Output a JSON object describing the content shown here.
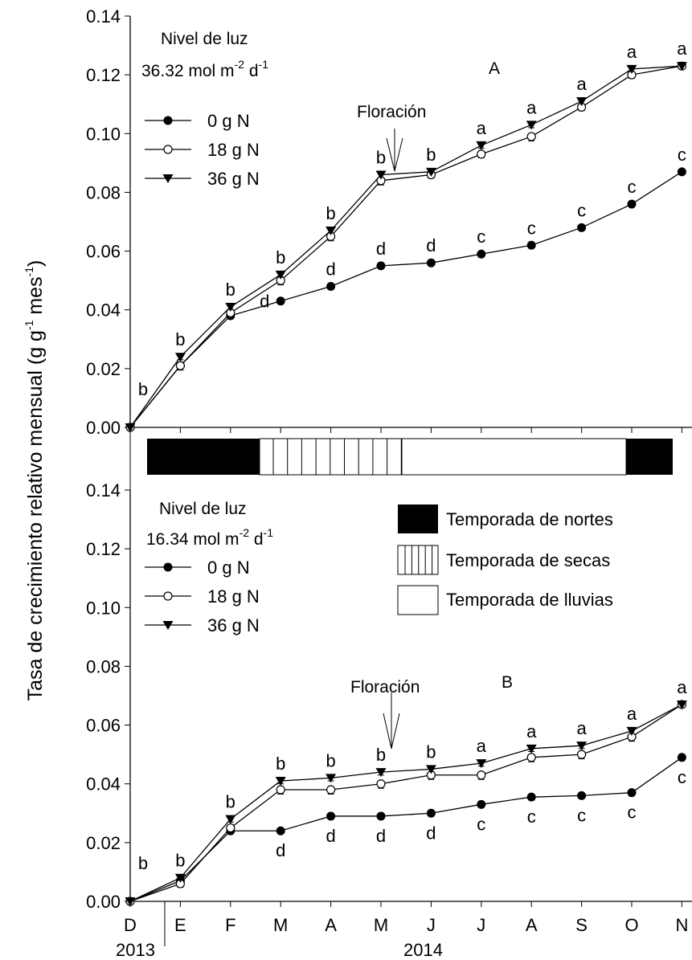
{
  "ylabel": {
    "main": "Tasa de crecimiento relativo mensual (g g",
    "sup1": "-1",
    "mid": " mes",
    "sup2": "-1",
    "end": ")"
  },
  "season_legend": {
    "items": [
      {
        "label": "Temporada de nortes",
        "pattern": "solid"
      },
      {
        "label": "Temporada de secas",
        "pattern": "vertical-lines"
      },
      {
        "label": "Temporada de lluvias",
        "pattern": "blank"
      }
    ]
  },
  "season_bar": [
    {
      "pattern": "solid",
      "from": "D",
      "to": "F"
    },
    {
      "pattern": "vertical-lines",
      "from": "F",
      "to": "J"
    },
    {
      "pattern": "blank",
      "from": "J",
      "to": "N"
    },
    {
      "pattern": "solid",
      "from": "N",
      "to": "end"
    }
  ],
  "x_axis": {
    "categories": [
      "D",
      "E",
      "F",
      "M",
      "A",
      "M",
      "J",
      "J",
      "A",
      "S",
      "O",
      "N"
    ],
    "years": [
      "2013",
      "2014"
    ]
  },
  "chart_data": [
    {
      "type": "line",
      "panel_letter": "A",
      "light_label": "Nivel de luz",
      "light_value": {
        "num": "36.32 mol m",
        "sup1": "-2",
        "mid": " d",
        "sup2": "-1"
      },
      "flowering_label": "Floración",
      "ylim": [
        0,
        0.14
      ],
      "yticks": [
        "0.00",
        "0.02",
        "0.04",
        "0.06",
        "0.08",
        "0.10",
        "0.12",
        "0.14"
      ],
      "categories": [
        "D",
        "E",
        "F",
        "M",
        "A",
        "M",
        "J",
        "J",
        "A",
        "S",
        "O",
        "N"
      ],
      "series": [
        {
          "name": "0 g N",
          "marker": "filled-circle",
          "values": [
            0.0,
            0.021,
            0.038,
            0.043,
            0.048,
            0.055,
            0.056,
            0.059,
            0.062,
            0.068,
            0.076,
            0.087
          ],
          "errors": [
            0.0005,
            0.001,
            0.001,
            0.001,
            0.001,
            0.001,
            0.001,
            0.001,
            0.001,
            0.001,
            0.001,
            0.001
          ]
        },
        {
          "name": "18 g N",
          "marker": "open-circle",
          "values": [
            0.0,
            0.021,
            0.039,
            0.05,
            0.065,
            0.084,
            0.086,
            0.093,
            0.099,
            0.109,
            0.12,
            0.123
          ],
          "errors": [
            0.0005,
            0.0015,
            0.0012,
            0.0015,
            0.0015,
            0.0015,
            0.0012,
            0.0012,
            0.0015,
            0.0012,
            0.0012,
            0.001
          ]
        },
        {
          "name": "36 g N",
          "marker": "filled-triangle-down",
          "values": [
            0.0,
            0.024,
            0.041,
            0.052,
            0.067,
            0.086,
            0.087,
            0.096,
            0.103,
            0.111,
            0.122,
            0.123
          ],
          "errors": [
            0.0005,
            0.001,
            0.001,
            0.001,
            0.001,
            0.001,
            0.001,
            0.001,
            0.001,
            0.001,
            0.001,
            0.001
          ]
        }
      ],
      "significance": {
        "upper": [
          "b",
          "b",
          "b",
          "b",
          "b",
          "b",
          "b",
          "a",
          "a",
          "a",
          "a",
          "a"
        ],
        "lower": [
          "",
          "",
          "",
          "d",
          "d",
          "d",
          "d",
          "c",
          "c",
          "c",
          "c",
          "c"
        ]
      }
    },
    {
      "type": "line",
      "panel_letter": "B",
      "light_label": "Nivel de luz",
      "light_value": {
        "num": "16.34 mol m",
        "sup1": "-2",
        "mid": " d",
        "sup2": "-1"
      },
      "flowering_label": "Floración",
      "ylim": [
        0,
        0.14
      ],
      "yticks": [
        "0.00",
        "0.02",
        "0.04",
        "0.06",
        "0.08",
        "0.10",
        "0.12",
        "0.14"
      ],
      "categories": [
        "D",
        "E",
        "F",
        "M",
        "A",
        "M",
        "J",
        "J",
        "A",
        "S",
        "O",
        "N"
      ],
      "series": [
        {
          "name": "0 g N",
          "marker": "filled-circle",
          "values": [
            0.0,
            0.007,
            0.024,
            0.024,
            0.029,
            0.029,
            0.03,
            0.033,
            0.0355,
            0.036,
            0.037,
            0.049
          ],
          "errors": [
            0.0005,
            0.001,
            0.001,
            0.001,
            0.001,
            0.001,
            0.001,
            0.001,
            0.001,
            0.001,
            0.001,
            0.001
          ]
        },
        {
          "name": "18 g N",
          "marker": "open-circle",
          "values": [
            0.0,
            0.006,
            0.025,
            0.038,
            0.038,
            0.04,
            0.043,
            0.043,
            0.049,
            0.05,
            0.056,
            0.067
          ],
          "errors": [
            0.0005,
            0.0012,
            0.0015,
            0.0015,
            0.0015,
            0.0015,
            0.0015,
            0.0015,
            0.0015,
            0.0015,
            0.0015,
            0.001
          ]
        },
        {
          "name": "36 g N",
          "marker": "filled-triangle-down",
          "values": [
            0.0,
            0.008,
            0.028,
            0.041,
            0.042,
            0.044,
            0.045,
            0.047,
            0.052,
            0.053,
            0.058,
            0.067
          ],
          "errors": [
            0.0005,
            0.001,
            0.001,
            0.001,
            0.001,
            0.001,
            0.001,
            0.001,
            0.001,
            0.001,
            0.001,
            0.001
          ]
        }
      ],
      "significance": {
        "upper": [
          "b",
          "b",
          "b",
          "b",
          "b",
          "b",
          "b",
          "a",
          "a",
          "a",
          "a",
          "a"
        ],
        "lower": [
          "",
          "",
          "",
          "d",
          "d",
          "d",
          "d",
          "c",
          "c",
          "c",
          "c",
          "c"
        ],
        "lower_extra_N": "c"
      }
    }
  ]
}
